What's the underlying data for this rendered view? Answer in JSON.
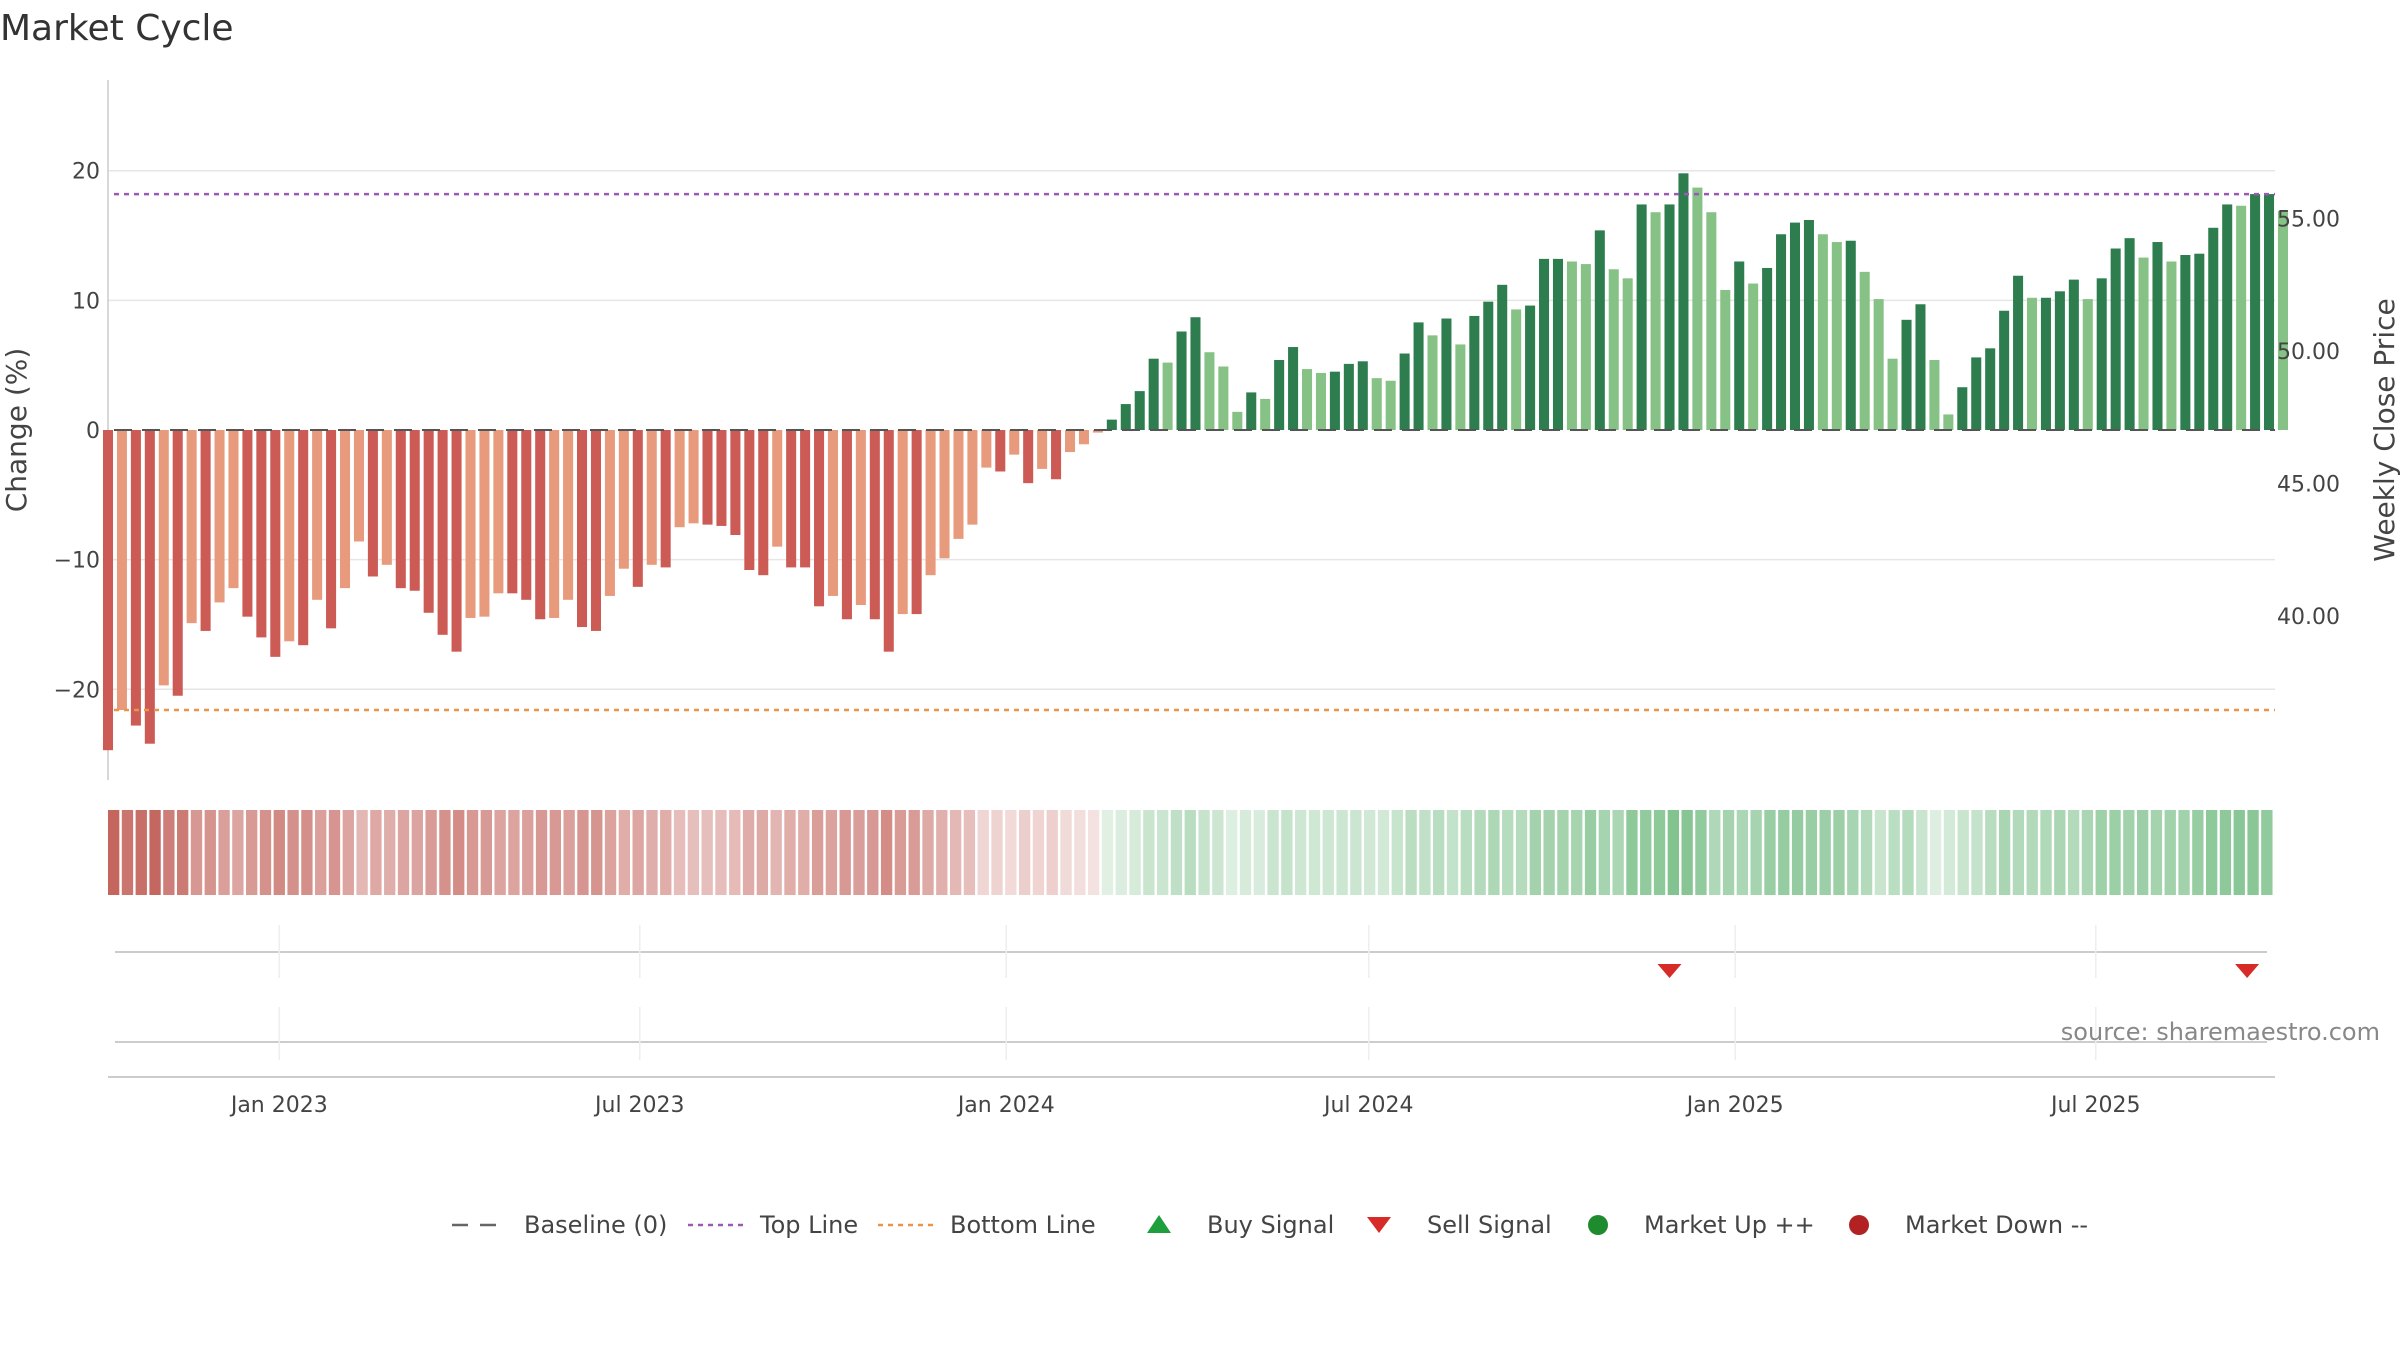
{
  "chart_data": {
    "type": "bar",
    "title": "Market Cycle",
    "ylabel": "Change (%)",
    "y2label": "Weekly Close Price",
    "ylim": [
      -27,
      27
    ],
    "y2lim": [
      33.82,
      60.22
    ],
    "yticks": [
      -20,
      -10,
      0,
      10,
      20
    ],
    "yticklabels": [
      "−20",
      "−10",
      "0",
      "10",
      "20"
    ],
    "y2ticks": [
      40,
      45,
      50,
      55
    ],
    "y2ticklabels": [
      "40.00",
      "45.00",
      "50.00",
      "55.00"
    ],
    "x_start": "2022-10-07",
    "x_interval_days": 7,
    "xlim": [
      "2022-10-07",
      "2025-09-29"
    ],
    "xticks": [
      "2023-01-01",
      "2023-07-01",
      "2024-01-01",
      "2024-07-01",
      "2025-01-01",
      "2025-07-01"
    ],
    "xticklabels": [
      "Jan 2023",
      "Jul 2023",
      "Jan 2024",
      "Jul 2024",
      "Jan 2025",
      "Jul 2025"
    ],
    "reference_lines": {
      "baseline": 0,
      "top_line": 18.2,
      "bottom_line": -21.6
    },
    "values": [
      -24.7,
      -21.6,
      -22.8,
      -24.2,
      -19.7,
      -20.5,
      -14.9,
      -15.5,
      -13.3,
      -12.2,
      -14.4,
      -16.0,
      -17.5,
      -16.3,
      -16.6,
      -13.1,
      -15.3,
      -12.2,
      -8.6,
      -11.3,
      -10.4,
      -12.2,
      -12.4,
      -14.1,
      -15.8,
      -17.1,
      -14.5,
      -14.4,
      -12.6,
      -12.6,
      -13.1,
      -14.6,
      -14.5,
      -13.1,
      -15.2,
      -15.5,
      -12.8,
      -10.7,
      -12.1,
      -10.4,
      -10.6,
      -7.5,
      -7.2,
      -7.3,
      -7.4,
      -8.1,
      -10.8,
      -11.2,
      -9.0,
      -10.6,
      -10.6,
      -13.6,
      -12.8,
      -14.6,
      -13.5,
      -14.6,
      -17.1,
      -14.2,
      -14.2,
      -11.2,
      -9.9,
      -8.4,
      -7.3,
      -2.9,
      -3.2,
      -1.9,
      -4.1,
      -3.0,
      -3.8,
      -1.7,
      -1.1,
      -0.2,
      0.8,
      2.0,
      3.0,
      5.5,
      5.2,
      7.6,
      8.7,
      6.0,
      4.9,
      1.4,
      2.9,
      2.4,
      5.4,
      6.4,
      4.7,
      4.4,
      4.5,
      5.1,
      5.3,
      4.0,
      3.8,
      5.9,
      8.3,
      7.3,
      8.6,
      6.6,
      8.8,
      9.9,
      11.2,
      9.3,
      9.6,
      13.2,
      13.2,
      13.0,
      12.8,
      15.4,
      12.4,
      11.7,
      17.4,
      16.8,
      17.4,
      19.8,
      18.7,
      16.8,
      10.8,
      13.0,
      11.3,
      12.5,
      15.1,
      16.0,
      16.2,
      15.1,
      14.5,
      14.6,
      12.2,
      10.1,
      5.5,
      8.5,
      9.7,
      5.4,
      1.2,
      3.3,
      5.6,
      6.3,
      9.2,
      11.9,
      10.2,
      10.2,
      10.7,
      11.6,
      10.1,
      11.7,
      14.0,
      14.8,
      13.3,
      14.5,
      13.0,
      13.5,
      13.6,
      15.6,
      17.4,
      17.3,
      18.2,
      18.2,
      16.9
    ],
    "signals": [
      {
        "type": "sell",
        "date": "2024-11-29"
      },
      {
        "type": "sell",
        "date": "2025-09-15"
      }
    ],
    "source": "source: sharemaestro.com",
    "legend_position": "bottom",
    "legend": [
      {
        "label": "Baseline (0)",
        "symbol": "dash",
        "color": "#666666"
      },
      {
        "label": "Top Line",
        "symbol": "dot",
        "color": "#9b59b6"
      },
      {
        "label": "Bottom Line",
        "symbol": "dot",
        "color": "#e8954a"
      },
      {
        "label": "Buy Signal",
        "symbol": "triangle-up",
        "color": "#1e9e3c"
      },
      {
        "label": "Sell Signal",
        "symbol": "triangle-down",
        "color": "#d62b27"
      },
      {
        "label": "Market Up ++",
        "symbol": "circle",
        "color": "#1f8b2f"
      },
      {
        "label": "Market Down --",
        "symbol": "circle",
        "color": "#b22222"
      }
    ],
    "colors": {
      "pos_strong": "#2e7d4f",
      "pos_light": "#86c285",
      "neg_strong": "#cc5a55",
      "neg_light": "#e89a7d",
      "heat_pos": "#6ab77a",
      "heat_neg": "#c4655e",
      "grid": "#e6e6e6"
    }
  }
}
